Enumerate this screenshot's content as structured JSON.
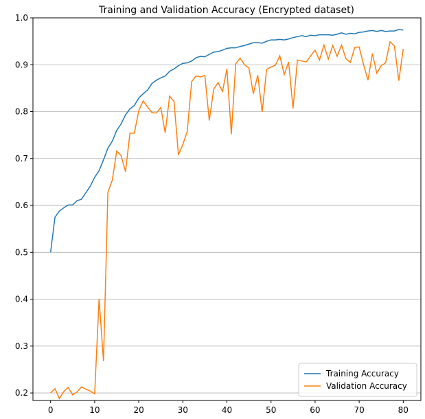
{
  "chart_data": {
    "type": "line",
    "title": "Training and Validation Accuracy (Encrypted dataset)",
    "x": [
      0,
      1,
      2,
      3,
      4,
      5,
      6,
      7,
      8,
      9,
      10,
      11,
      12,
      13,
      14,
      15,
      16,
      17,
      18,
      19,
      20,
      21,
      22,
      23,
      24,
      25,
      26,
      27,
      28,
      29,
      30,
      31,
      32,
      33,
      34,
      35,
      36,
      37,
      38,
      39,
      40,
      41,
      42,
      43,
      44,
      45,
      46,
      47,
      48,
      49,
      50,
      51,
      52,
      53,
      54,
      55,
      56,
      57,
      58,
      59,
      60,
      61,
      62,
      63,
      64,
      65,
      66,
      67,
      68,
      69,
      70,
      71,
      72,
      73,
      74,
      75,
      76,
      77,
      78,
      79,
      80
    ],
    "series": [
      {
        "name": "Training Accuracy",
        "color": "#1f77b4",
        "values": [
          0.5,
          0.575,
          0.588,
          0.595,
          0.601,
          0.601,
          0.61,
          0.613,
          0.627,
          0.641,
          0.66,
          0.674,
          0.697,
          0.722,
          0.737,
          0.76,
          0.774,
          0.793,
          0.806,
          0.813,
          0.829,
          0.838,
          0.846,
          0.86,
          0.867,
          0.872,
          0.876,
          0.886,
          0.891,
          0.898,
          0.903,
          0.904,
          0.908,
          0.915,
          0.918,
          0.917,
          0.922,
          0.927,
          0.928,
          0.931,
          0.935,
          0.936,
          0.936,
          0.939,
          0.941,
          0.944,
          0.947,
          0.947,
          0.946,
          0.95,
          0.953,
          0.953,
          0.954,
          0.953,
          0.955,
          0.958,
          0.96,
          0.962,
          0.96,
          0.963,
          0.962,
          0.964,
          0.964,
          0.964,
          0.963,
          0.965,
          0.968,
          0.965,
          0.967,
          0.966,
          0.969,
          0.97,
          0.972,
          0.973,
          0.971,
          0.973,
          0.971,
          0.972,
          0.972,
          0.975,
          0.974
        ]
      },
      {
        "name": "Validation Accuracy",
        "color": "#ff7f0e",
        "values": [
          0.2,
          0.209,
          0.188,
          0.203,
          0.212,
          0.196,
          0.202,
          0.213,
          0.208,
          0.204,
          0.198,
          0.401,
          0.268,
          0.628,
          0.654,
          0.716,
          0.706,
          0.672,
          0.754,
          0.754,
          0.802,
          0.823,
          0.81,
          0.798,
          0.797,
          0.809,
          0.755,
          0.833,
          0.822,
          0.708,
          0.73,
          0.758,
          0.864,
          0.876,
          0.874,
          0.877,
          0.781,
          0.848,
          0.862,
          0.843,
          0.891,
          0.752,
          0.902,
          0.914,
          0.9,
          0.893,
          0.838,
          0.878,
          0.799,
          0.89,
          0.895,
          0.899,
          0.919,
          0.879,
          0.906,
          0.807,
          0.91,
          0.908,
          0.906,
          0.919,
          0.931,
          0.91,
          0.942,
          0.912,
          0.941,
          0.918,
          0.942,
          0.913,
          0.905,
          0.937,
          0.938,
          0.9,
          0.867,
          0.924,
          0.882,
          0.898,
          0.904,
          0.949,
          0.94,
          0.866,
          0.934
        ]
      }
    ],
    "xlim": [
      -4,
      84
    ],
    "xticks": [
      0,
      10,
      20,
      30,
      40,
      50,
      60,
      70,
      80
    ],
    "ylim": [
      0.184,
      1.0
    ],
    "yticks": [
      0.2,
      0.3,
      0.4,
      0.5,
      0.6,
      0.7,
      0.8,
      0.9,
      {
        "value": 1,
        "label": "1.0"
      }
    ],
    "grid": "y",
    "legend": "lower right"
  }
}
